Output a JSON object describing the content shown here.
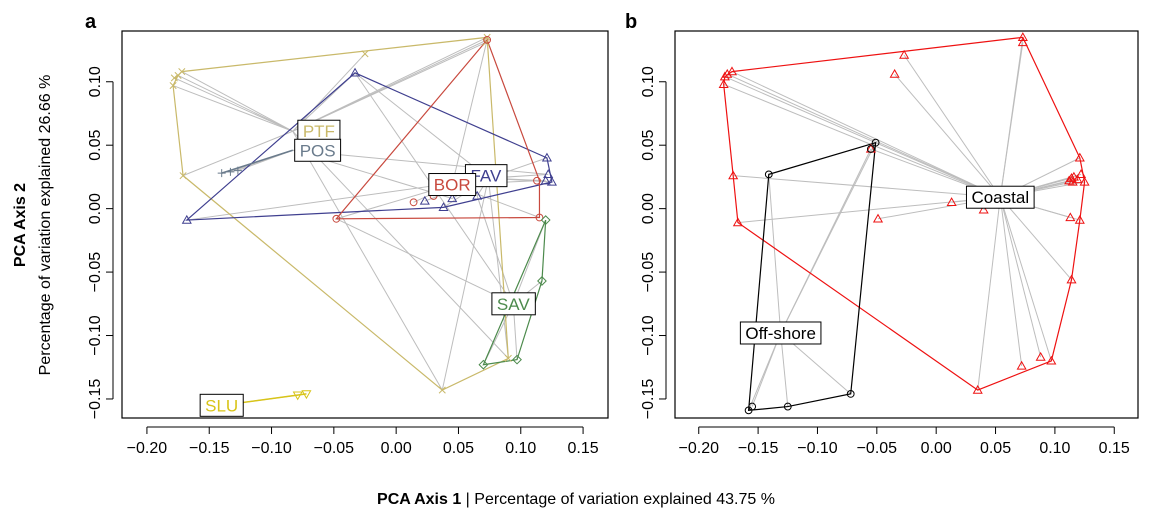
{
  "figure": {
    "xlabel_bold": "PCA Axis 1",
    "xlabel_sep": "|",
    "xlabel_detail": "Percentage of variation explained 43.75 %",
    "ylabel_bold": "PCA Axis 2",
    "ylabel_detail": "Percentage of variation explained 26.66 %"
  },
  "chart_data": [
    {
      "panel": "a",
      "type": "scatter",
      "xlim": [
        -0.22,
        0.17
      ],
      "ylim": [
        -0.165,
        0.14
      ],
      "x_ticks": [
        -0.2,
        -0.15,
        -0.1,
        -0.05,
        0.0,
        0.05,
        0.1,
        0.15
      ],
      "x_tick_labels": [
        "−0.20",
        "−0.15",
        "−0.10",
        "−0.05",
        "0.00",
        "0.05",
        "0.10",
        "0.15"
      ],
      "y_ticks": [
        -0.15,
        -0.1,
        -0.05,
        0.0,
        0.05,
        0.1
      ],
      "y_tick_labels": [
        "−0.15",
        "−0.10",
        "−0.05",
        "0.00",
        "0.05",
        "0.10"
      ],
      "legend": "none",
      "grid": false,
      "groups": [
        {
          "name": "PTF",
          "color": "#c9b96a",
          "marker": "x",
          "centroid": [
            -0.083,
            0.061
          ],
          "points": [
            [
              -0.178,
              0.103
            ],
            [
              -0.175,
              0.105
            ],
            [
              -0.179,
              0.097
            ],
            [
              -0.172,
              0.108
            ],
            [
              -0.025,
              0.122
            ],
            [
              0.073,
              0.135
            ],
            [
              -0.171,
              0.026
            ],
            [
              0.037,
              -0.143
            ],
            [
              0.09,
              -0.118
            ],
            [
              0.072,
              0.131
            ]
          ],
          "hull": [
            [
              -0.179,
              0.097
            ],
            [
              -0.175,
              0.105
            ],
            [
              -0.172,
              0.108
            ],
            [
              0.073,
              0.135
            ],
            [
              0.09,
              -0.118
            ],
            [
              0.037,
              -0.143
            ],
            [
              -0.171,
              0.026
            ]
          ]
        },
        {
          "name": "POS",
          "color": "#6a7b8c",
          "marker": "+",
          "centroid": [
            -0.083,
            0.046
          ],
          "points": [
            [
              -0.14,
              0.028
            ],
            [
              -0.133,
              0.029
            ],
            [
              -0.127,
              0.03
            ]
          ],
          "hull": []
        },
        {
          "name": "FAV",
          "color": "#3f3f8f",
          "marker": "triangle",
          "centroid": [
            0.074,
            0.024
          ],
          "points": [
            [
              -0.168,
              -0.009
            ],
            [
              -0.033,
              0.107
            ],
            [
              0.023,
              0.006
            ],
            [
              0.038,
              0.001
            ],
            [
              0.121,
              0.04
            ],
            [
              0.122,
              0.027
            ],
            [
              0.125,
              0.021
            ],
            [
              0.12,
              0.022
            ],
            [
              0.065,
              0.01
            ],
            [
              0.045,
              0.008
            ]
          ],
          "hull": [
            [
              -0.168,
              -0.009
            ],
            [
              -0.033,
              0.107
            ],
            [
              0.121,
              0.04
            ],
            [
              0.125,
              0.021
            ],
            [
              0.038,
              0.001
            ]
          ]
        },
        {
          "name": "BOR",
          "color": "#c8493e",
          "marker": "circle",
          "centroid": [
            0.045,
            0.019
          ],
          "points": [
            [
              -0.048,
              -0.008
            ],
            [
              0.014,
              0.005
            ],
            [
              0.073,
              0.133
            ],
            [
              0.113,
              0.022
            ],
            [
              0.115,
              -0.007
            ],
            [
              0.03,
              0.01
            ]
          ],
          "hull": [
            [
              -0.048,
              -0.008
            ],
            [
              0.073,
              0.133
            ],
            [
              0.115,
              0.022
            ],
            [
              0.115,
              -0.007
            ]
          ]
        },
        {
          "name": "SAV",
          "color": "#4c8a4c",
          "marker": "diamond",
          "centroid": [
            0.094,
            -0.075
          ],
          "points": [
            [
              0.12,
              -0.009
            ],
            [
              0.117,
              -0.057
            ],
            [
              0.097,
              -0.119
            ],
            [
              0.07,
              -0.123
            ],
            [
              0.105,
              -0.08
            ]
          ],
          "hull": [
            [
              0.12,
              -0.009
            ],
            [
              0.117,
              -0.057
            ],
            [
              0.097,
              -0.119
            ],
            [
              0.07,
              -0.123
            ]
          ]
        },
        {
          "name": "SLU",
          "color": "#d8c418",
          "marker": "inverted-triangle",
          "centroid": [
            -0.14,
            -0.155
          ],
          "points": [
            [
              -0.072,
              -0.146
            ],
            [
              -0.079,
              -0.147
            ]
          ],
          "hull": []
        }
      ],
      "extra_spokes": [
        {
          "from": [
            -0.083,
            0.061
          ],
          "to": [
            -0.033,
            0.107
          ]
        },
        {
          "from": [
            -0.083,
            0.061
          ],
          "to": [
            0.073,
            0.133
          ]
        },
        {
          "from": [
            -0.083,
            0.046
          ],
          "to": [
            0.045,
            0.008
          ]
        },
        {
          "from": [
            -0.083,
            0.046
          ],
          "to": [
            0.122,
            0.027
          ]
        },
        {
          "from": [
            0.074,
            0.024
          ],
          "to": [
            0.037,
            -0.143
          ]
        },
        {
          "from": [
            0.074,
            0.024
          ],
          "to": [
            0.09,
            -0.118
          ]
        },
        {
          "from": [
            0.094,
            -0.075
          ],
          "to": [
            -0.048,
            -0.008
          ]
        },
        {
          "from": [
            0.094,
            -0.075
          ],
          "to": [
            -0.033,
            0.107
          ]
        },
        {
          "from": [
            0.094,
            -0.075
          ],
          "to": [
            0.065,
            0.01
          ]
        }
      ]
    },
    {
      "panel": "b",
      "type": "scatter",
      "xlim": [
        -0.22,
        0.17
      ],
      "ylim": [
        -0.165,
        0.14
      ],
      "x_ticks": [
        -0.2,
        -0.15,
        -0.1,
        -0.05,
        0.0,
        0.05,
        0.1,
        0.15
      ],
      "x_tick_labels": [
        "−0.20",
        "−0.15",
        "−0.10",
        "−0.05",
        "0.00",
        "0.05",
        "0.10",
        "0.15"
      ],
      "y_ticks": [
        -0.15,
        -0.1,
        -0.05,
        0.0,
        0.05,
        0.1
      ],
      "y_tick_labels": [
        "−0.15",
        "−0.10",
        "−0.05",
        "0.00",
        "0.05",
        "0.10"
      ],
      "legend": "none",
      "grid": false,
      "groups": [
        {
          "name": "Coastal",
          "color": "#ee1111",
          "marker": "triangle",
          "centroid": [
            0.054,
            0.009
          ],
          "points": [
            [
              -0.178,
              0.104
            ],
            [
              -0.176,
              0.106
            ],
            [
              -0.179,
              0.098
            ],
            [
              -0.172,
              0.108
            ],
            [
              -0.171,
              0.026
            ],
            [
              -0.167,
              -0.011
            ],
            [
              -0.027,
              0.121
            ],
            [
              -0.035,
              0.106
            ],
            [
              -0.055,
              0.047
            ],
            [
              -0.049,
              -0.008
            ],
            [
              0.013,
              0.005
            ],
            [
              0.04,
              -0.001
            ],
            [
              0.073,
              0.135
            ],
            [
              0.073,
              0.131
            ],
            [
              0.035,
              -0.143
            ],
            [
              0.072,
              -0.124
            ],
            [
              0.088,
              -0.117
            ],
            [
              0.097,
              -0.12
            ],
            [
              0.114,
              -0.056
            ],
            [
              0.113,
              -0.007
            ],
            [
              0.121,
              -0.009
            ],
            [
              0.112,
              0.022
            ],
            [
              0.114,
              0.024
            ],
            [
              0.115,
              0.021
            ],
            [
              0.121,
              0.04
            ],
            [
              0.122,
              0.027
            ],
            [
              0.125,
              0.021
            ],
            [
              0.119,
              0.023
            ],
            [
              0.116,
              0.025
            ]
          ],
          "hull": [
            [
              -0.179,
              0.098
            ],
            [
              -0.178,
              0.104
            ],
            [
              -0.172,
              0.108
            ],
            [
              0.073,
              0.135
            ],
            [
              0.121,
              0.04
            ],
            [
              0.125,
              0.021
            ],
            [
              0.121,
              -0.009
            ],
            [
              0.114,
              -0.056
            ],
            [
              0.097,
              -0.12
            ],
            [
              0.035,
              -0.143
            ],
            [
              -0.167,
              -0.011
            ],
            [
              -0.171,
              0.026
            ]
          ]
        },
        {
          "name": "Off-shore",
          "color": "#000000",
          "marker": "circle",
          "centroid": [
            -0.131,
            -0.098
          ],
          "points": [
            [
              -0.141,
              0.027
            ],
            [
              -0.051,
              0.052
            ],
            [
              -0.055,
              0.047
            ],
            [
              -0.072,
              -0.146
            ],
            [
              -0.125,
              -0.156
            ],
            [
              -0.155,
              -0.156
            ],
            [
              -0.158,
              -0.159
            ]
          ],
          "hull": [
            [
              -0.141,
              0.027
            ],
            [
              -0.051,
              0.052
            ],
            [
              -0.072,
              -0.146
            ],
            [
              -0.125,
              -0.156
            ],
            [
              -0.158,
              -0.159
            ]
          ]
        }
      ],
      "extra_spokes": []
    }
  ]
}
